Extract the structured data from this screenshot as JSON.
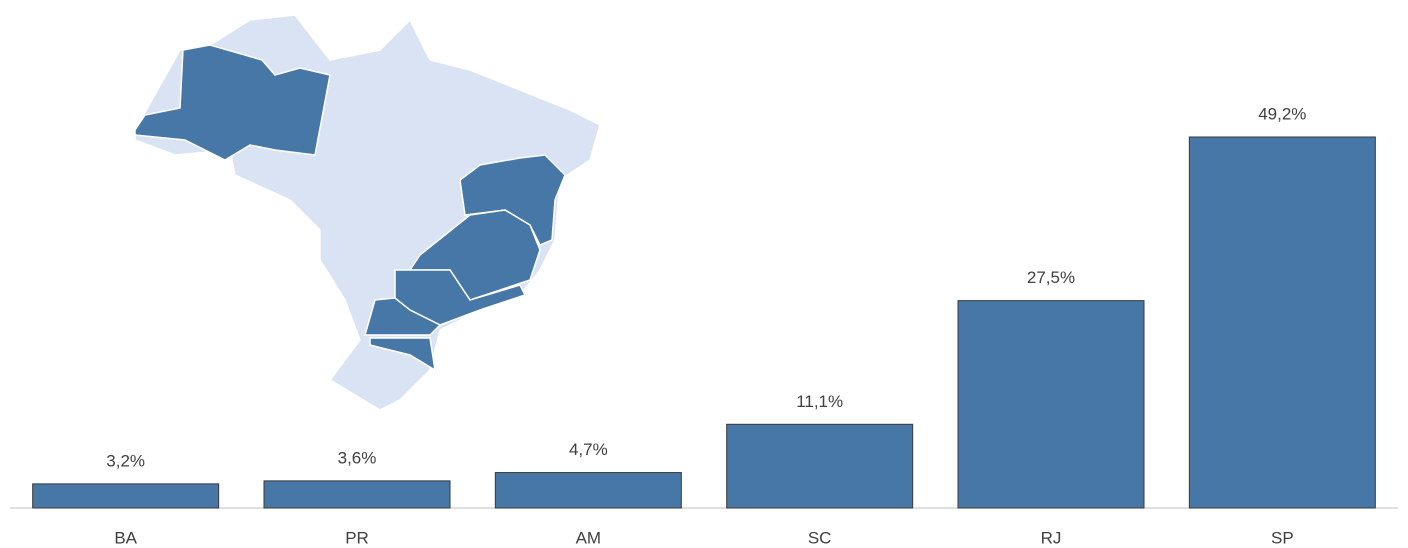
{
  "chart_data": {
    "type": "bar",
    "categories": [
      "BA",
      "PR",
      "AM",
      "SC",
      "RJ",
      "SP"
    ],
    "values": [
      3.2,
      3.6,
      4.7,
      11.1,
      27.5,
      49.2
    ],
    "value_labels": [
      "3,2%",
      "3,6%",
      "4,7%",
      "11,1%",
      "27,5%",
      "49,2%"
    ],
    "color": "#4677a6"
  }
}
